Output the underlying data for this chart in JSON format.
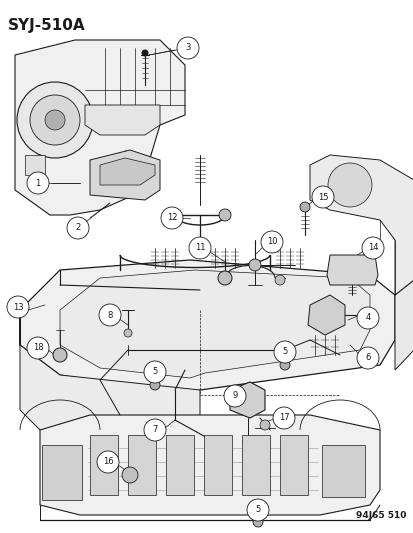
{
  "title": "SYJ-510A",
  "watermark": "94J65 510",
  "bg_color": "#ffffff",
  "line_color": "#1a1a1a",
  "title_fontsize": 11,
  "watermark_fontsize": 6.5,
  "label_circle_r": 0.016,
  "label_fontsize": 6.0
}
